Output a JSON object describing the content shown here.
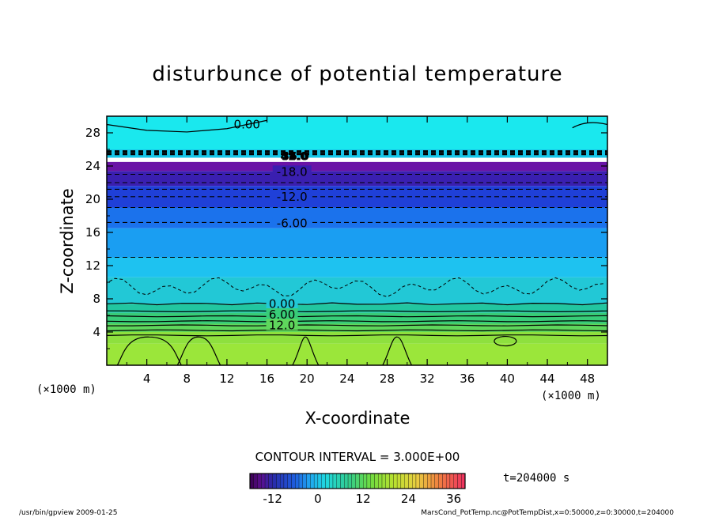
{
  "chart_data": {
    "type": "heatmap",
    "title": "disturbunce of potential temperature",
    "xlabel": "X-coordinate",
    "ylabel": "Z-coordinate",
    "x_unit": "(×1000 m)",
    "y_unit": "(×1000 m)",
    "xlim": [
      0,
      50
    ],
    "ylim": [
      0,
      30
    ],
    "x_ticks": [
      4,
      8,
      12,
      16,
      20,
      24,
      28,
      32,
      36,
      40,
      44,
      48
    ],
    "y_ticks": [
      4,
      8,
      12,
      16,
      20,
      24,
      28
    ],
    "contour_labels": [
      {
        "text": "0.00",
        "x": 14,
        "z": 29
      },
      {
        "text": "-18.0",
        "x": 18.5,
        "z": 23.3
      },
      {
        "text": "-12.0",
        "x": 18.5,
        "z": 20.3
      },
      {
        "text": "-6.00",
        "x": 18.5,
        "z": 17.1
      },
      {
        "text": "0.00",
        "x": 17.5,
        "z": 7.4
      },
      {
        "text": "6.00",
        "x": 17.5,
        "z": 6.1
      },
      {
        "text": "12.0",
        "x": 17.5,
        "z": 4.8
      }
    ],
    "overlap_labels": [
      "42.0",
      "48.0",
      "54.0",
      "36.0"
    ],
    "bands": [
      {
        "z0": 0,
        "z1": 2.6,
        "color": "#9be63a"
      },
      {
        "z0": 2.6,
        "z1": 4.0,
        "color": "#8ee03e"
      },
      {
        "z0": 4.0,
        "z1": 5.0,
        "color": "#5fd65c"
      },
      {
        "z0": 5.0,
        "z1": 6.3,
        "color": "#38cc78"
      },
      {
        "z0": 6.3,
        "z1": 7.4,
        "color": "#22c6a0"
      },
      {
        "z0": 7.4,
        "z1": 10.6,
        "color": "#22c8d6"
      },
      {
        "z0": 10.6,
        "z1": 13.0,
        "color": "#1ec2f0"
      },
      {
        "z0": 13.0,
        "z1": 16.5,
        "color": "#1a9ef2"
      },
      {
        "z0": 16.5,
        "z1": 19.0,
        "color": "#1b72ec"
      },
      {
        "z0": 19.0,
        "z1": 21.6,
        "color": "#1f40d8"
      },
      {
        "z0": 21.6,
        "z1": 23.4,
        "color": "#3a1fb0"
      },
      {
        "z0": 23.4,
        "z1": 24.5,
        "color": "#6a14a6"
      },
      {
        "z0": 24.5,
        "z1": 25.0,
        "color": "#ffffff"
      },
      {
        "z0": 25.0,
        "z1": 26.0,
        "color": "#16c6e8"
      },
      {
        "z0": 26.0,
        "z1": 30.0,
        "color": "#1ae8ee"
      }
    ],
    "contour_interval": "CONTOUR INTERVAL = 3.000E+00",
    "time_label": "t=204000 s",
    "colorbar": {
      "min": -18,
      "max": 39,
      "ticks": [
        "-12",
        "0",
        "12",
        "24",
        "36"
      ],
      "tick_values": [
        -12,
        0,
        12,
        24,
        36
      ]
    }
  },
  "footer": {
    "left": "/usr/bin/gpview  2009-01-25",
    "right": "MarsCond_PotTemp.nc@PotTempDist,x=0:50000,z=0:30000,t=204000"
  }
}
